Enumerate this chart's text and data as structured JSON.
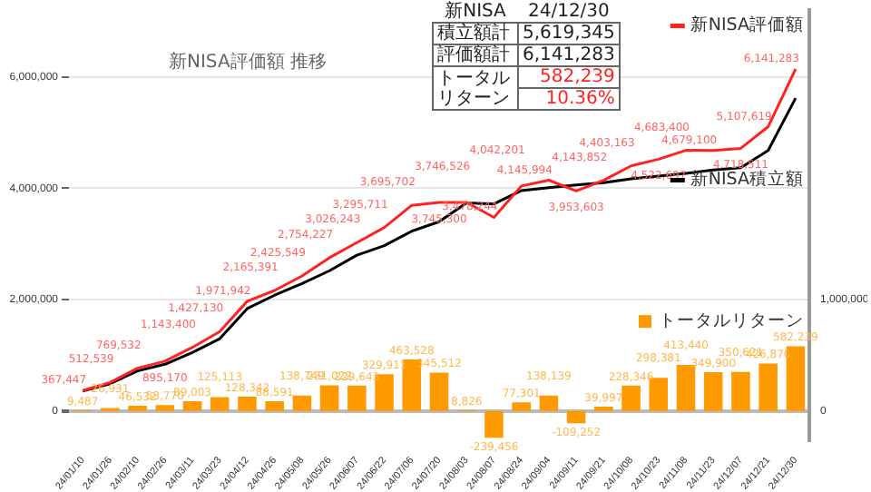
{
  "chart_data": [
    {
      "type": "bar",
      "title": "新NISA評価額 推移",
      "categories": [
        "24/01/10",
        "24/01/26",
        "24/02/10",
        "24/02/26",
        "24/03/11",
        "24/03/23",
        "24/04/12",
        "24/04/26",
        "24/05/08",
        "24/05/26",
        "24/06/07",
        "24/06/22",
        "24/07/06",
        "24/07/20",
        "24/08/03",
        "24/08/07",
        "24/08/24",
        "24/09/04",
        "24/09/11",
        "24/09/21",
        "24/10/08",
        "24/10/23",
        "24/11/08",
        "24/11/23",
        "24/12/07",
        "24/12/21",
        "24/12/30"
      ],
      "series": [
        {
          "name": "新NISA評価額",
          "type": "line",
          "color": "#ff2222",
          "values": [
            367447,
            512539,
            769532,
            895170,
            1143400,
            1427130,
            1971942,
            2165391,
            2425549,
            2754227,
            3026243,
            3295711,
            3695702,
            3745300,
            3746526,
            3478244,
            4042201,
            4145994,
            3953603,
            4143852,
            4403163,
            4522697,
            4683400,
            4679100,
            4718511,
            5107619,
            6141283
          ],
          "value_labels": [
            "367,447",
            "512,539",
            "769,532",
            "895,170",
            "1,143,400",
            "1,427,130",
            "1,971,942",
            "2,165,391",
            "2,425,549",
            "2,754,227",
            "3,026,243",
            "3,295,711",
            "3,695,702",
            "3,745,300",
            "3,746,526",
            "3,478,244",
            "4,042,201",
            "4,145,994",
            "3,953,603",
            "4,143,852",
            "4,403,163",
            "4,522,697",
            "4,683,400",
            "4,679,100",
            "4,718,511",
            "5,107,619",
            "6,141,283"
          ]
        },
        {
          "name": "新NISA積立額",
          "type": "line",
          "color": "#000000",
          "values": [
            360000,
            490000,
            720000,
            840000,
            1050000,
            1300000,
            1840000,
            2080000,
            2290000,
            2520000,
            2800000,
            2970000,
            3230000,
            3400000,
            3740000,
            3720000,
            3960000,
            4010000,
            4060000,
            4100000,
            4170000,
            4220000,
            4270000,
            4330000,
            4370000,
            4680000,
            5620000
          ]
        },
        {
          "name": "トータルリターン",
          "type": "bar",
          "axis": "y2",
          "color": "#ff9900",
          "values": [
            9487,
            26931,
            46532,
            53770,
            89003,
            125113,
            128342,
            88591,
            138749,
            231022,
            229643,
            329911,
            463528,
            345512,
            8826,
            -239456,
            77301,
            138139,
            -109252,
            39997,
            228346,
            298381,
            413440,
            349900,
            350621,
            426870,
            582239
          ],
          "value_labels": [
            "9,487",
            "26,931",
            "46,532",
            "53,770",
            "89,003",
            "125,113",
            "128,342",
            "88,591",
            "138,749",
            "231,022",
            "229,643",
            "329,911",
            "463,528",
            "345,512",
            "8,826",
            "-239,456",
            "77,301",
            "138,139",
            "-109,252",
            "39,997",
            "228,346",
            "298,381",
            "413,440",
            "349,900",
            "350,621",
            "426,870",
            "582,239"
          ]
        }
      ],
      "ylim": [
        -520000,
        7200000
      ],
      "yticks": [
        0,
        {
          "value": 2000000,
          "label": "2,000,000"
        },
        {
          "value": 4000000,
          "label": "4,000,000"
        },
        {
          "value": 6000000,
          "label": "6,000,000"
        }
      ],
      "y2lim": [
        -260000,
        3600000
      ],
      "y2ticks": [
        0,
        {
          "value": 1000000,
          "label": "1,000,000"
        }
      ],
      "grid": "y",
      "legend": "right",
      "marker": "none"
    },
    {
      "type": "other",
      "title": "新NISA",
      "subtitle": "24/12/30",
      "annotations": [
        "積立額計",
        "5,619,345",
        "評価額計",
        "6,141,283",
        "トータルリターン",
        "582,239",
        "10.36%"
      ]
    }
  ]
}
